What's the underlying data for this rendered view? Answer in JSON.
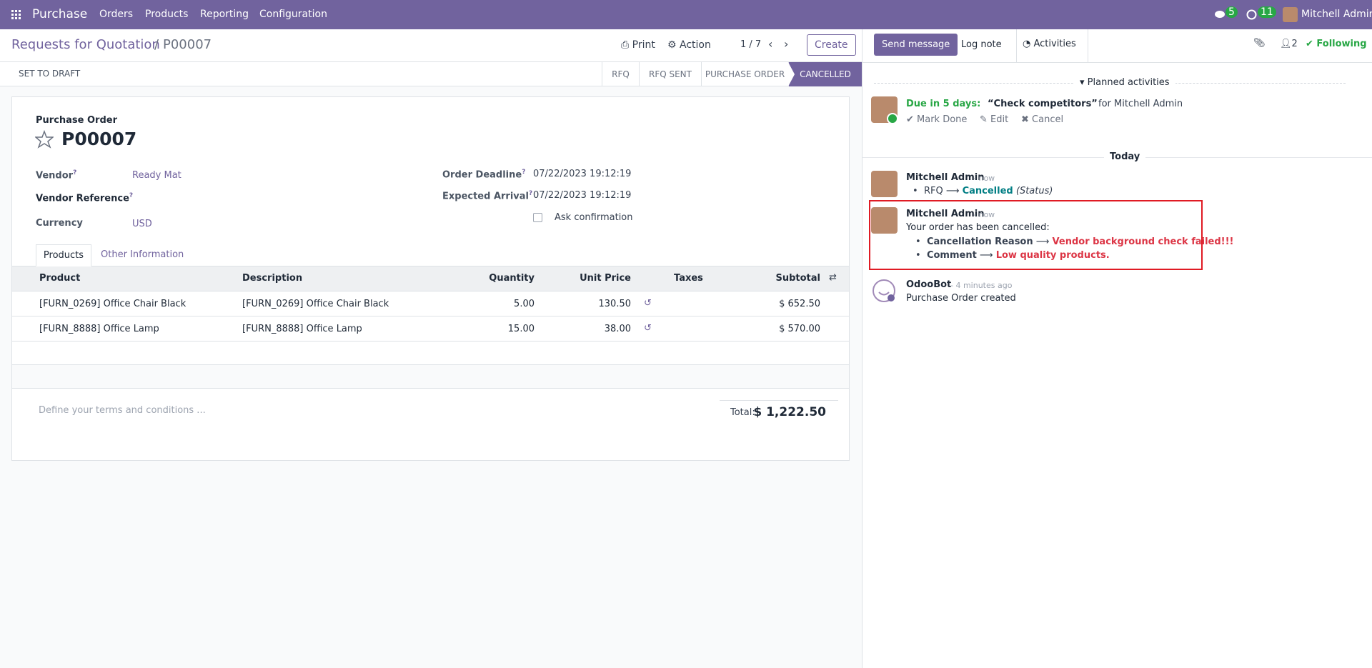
{
  "navbar": {
    "app": "Purchase",
    "menu": [
      "Orders",
      "Products",
      "Reporting",
      "Configuration"
    ],
    "messages_count": "5",
    "activities_count": "11",
    "user": "Mitchell Admin"
  },
  "breadcrumb": {
    "parent": "Requests for Quotation",
    "separator": "/",
    "current": "P00007"
  },
  "toolbar": {
    "print": "Print",
    "action": "Action",
    "pager": "1 / 7",
    "create": "Create"
  },
  "statusbar": {
    "button": "SET TO DRAFT",
    "stages": [
      "RFQ",
      "RFQ SENT",
      "PURCHASE ORDER",
      "CANCELLED"
    ]
  },
  "form": {
    "label": "Purchase Order",
    "name": "P00007",
    "help_mark": "?",
    "vendor": {
      "label": "Vendor",
      "value": "Ready Mat"
    },
    "vendor_reference": {
      "label": "Vendor Reference"
    },
    "currency": {
      "label": "Currency",
      "value": "USD"
    },
    "order_deadline": {
      "label": "Order Deadline",
      "value": "07/22/2023 19:12:19"
    },
    "expected_arrival": {
      "label": "Expected Arrival",
      "value": "07/22/2023 19:12:19"
    },
    "ask_confirmation": "Ask confirmation",
    "tabs": [
      "Products",
      "Other Information"
    ],
    "table": {
      "columns": [
        "Product",
        "Description",
        "Quantity",
        "Unit Price",
        "Taxes",
        "Subtotal"
      ],
      "rows": [
        [
          "[FURN_0269] Office Chair Black",
          "[FURN_0269] Office Chair Black",
          "5.00",
          "130.50",
          "",
          "$ 652.50"
        ],
        [
          "[FURN_8888] Office Lamp",
          "[FURN_8888] Office Lamp",
          "15.00",
          "38.00",
          "",
          "$ 570.00"
        ]
      ]
    },
    "terms": "Define your terms and conditions ...",
    "total_label": "Total:",
    "total": "$ 1,222.50"
  },
  "chatter": {
    "send_message": "Send message",
    "log_note": "Log note",
    "activities": "Activities",
    "followers": "2",
    "following": "Following",
    "planned": "Planned activities",
    "activity": {
      "due": "Due in 5 days:",
      "summary": "“Check competitors”",
      "for": "for Mitchell Admin",
      "mark_done": "Mark Done",
      "edit": "Edit",
      "cancel": "Cancel"
    },
    "today": "Today",
    "messages": [
      {
        "author": "Mitchell Admin",
        "time": "- now",
        "old": "RFQ",
        "new": "Cancelled",
        "field": "(Status)"
      },
      {
        "author": "Mitchell Admin",
        "time": "- now",
        "body": "Your order has been cancelled:",
        "items": [
          {
            "label": "Cancellation Reason",
            "value": "Vendor background check failed!!!"
          },
          {
            "label": "Comment",
            "value": "Low quality products."
          }
        ]
      },
      {
        "author": "OdooBot",
        "time": "- 4 minutes ago",
        "body": "Purchase Order created"
      }
    ]
  }
}
